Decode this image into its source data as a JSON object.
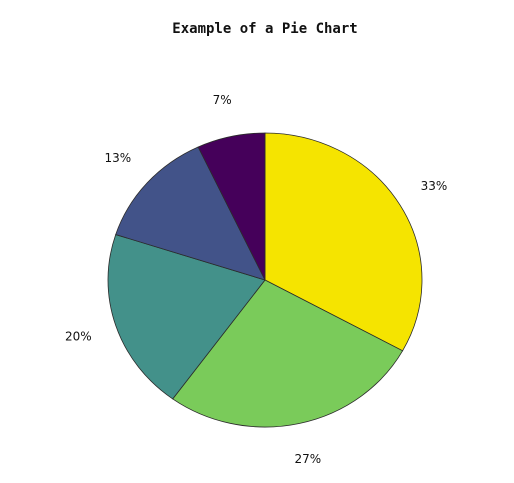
{
  "chart_data": {
    "type": "pie",
    "title": "Example of a Pie Chart",
    "slices": [
      {
        "label": "33%",
        "value": 33,
        "color": "#f5e400"
      },
      {
        "label": "27%",
        "value": 27,
        "color": "#7acb5a"
      },
      {
        "label": "20%",
        "value": 20,
        "color": "#43918a"
      },
      {
        "label": "13%",
        "value": 13,
        "color": "#425389"
      },
      {
        "label": "7%",
        "value": 7,
        "color": "#45005a"
      }
    ],
    "start_angle_deg": 90,
    "direction": "clockwise",
    "legend": "none"
  }
}
